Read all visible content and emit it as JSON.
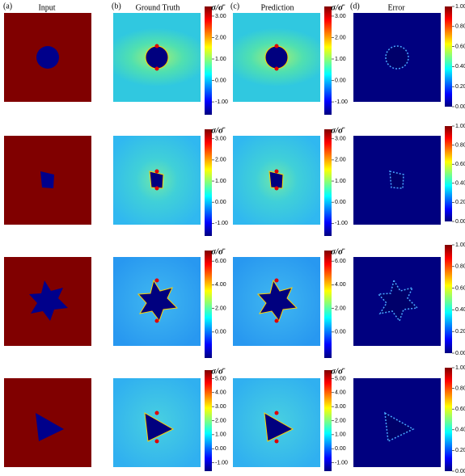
{
  "panels": [
    {
      "label": "(a)",
      "title": "Input"
    },
    {
      "label": "(b)",
      "title": "Ground Truth"
    },
    {
      "label": "(c)",
      "title": "Prediction"
    },
    {
      "label": "(d)",
      "title": "Error"
    }
  ],
  "colorbar_label": "σ/σ̄",
  "rows": [
    {
      "stress_lim": [
        -1.6,
        3.45
      ],
      "stress_ticks": [
        {
          "value": 3,
          "label": "3.00"
        },
        {
          "value": 2,
          "label": "2.00"
        },
        {
          "value": 1,
          "label": "1.00"
        },
        {
          "value": 0,
          "label": "0.00"
        },
        {
          "value": -1,
          "label": "-1.00"
        }
      ],
      "error_lim": [
        0,
        1
      ],
      "error_ticks": [
        {
          "value": 1,
          "label": "1.00"
        },
        {
          "value": 0.8,
          "label": "0.80"
        },
        {
          "value": 0.6,
          "label": "0.60"
        },
        {
          "value": 0.4,
          "label": "0.40"
        },
        {
          "value": 0.2,
          "label": "0.20"
        },
        {
          "value": 0,
          "label": "0.00"
        }
      ]
    },
    {
      "stress_lim": [
        -1.6,
        3.45
      ],
      "stress_ticks": [
        {
          "value": 3,
          "label": "3.00"
        },
        {
          "value": 2,
          "label": "2.00"
        },
        {
          "value": 1,
          "label": "1.00"
        },
        {
          "value": 0,
          "label": "0.00"
        },
        {
          "value": -1,
          "label": "-1.00"
        }
      ],
      "error_lim": [
        0,
        1
      ],
      "error_ticks": [
        {
          "value": 1,
          "label": "1.00"
        },
        {
          "value": 0.8,
          "label": "0.80"
        },
        {
          "value": 0.6,
          "label": "0.60"
        },
        {
          "value": 0.4,
          "label": "0.40"
        },
        {
          "value": 0.2,
          "label": "0.20"
        },
        {
          "value": 0,
          "label": "0.00"
        }
      ]
    },
    {
      "stress_lim": [
        -2.2,
        6.9
      ],
      "stress_ticks": [
        {
          "value": 6,
          "label": "6.00"
        },
        {
          "value": 4,
          "label": "4.00"
        },
        {
          "value": 2,
          "label": "2.00"
        },
        {
          "value": 0,
          "label": "0.00"
        }
      ],
      "error_lim": [
        0,
        1
      ],
      "error_ticks": [
        {
          "value": 1,
          "label": "1.00"
        },
        {
          "value": 0.8,
          "label": "0.80"
        },
        {
          "value": 0.6,
          "label": "0.60"
        },
        {
          "value": 0.4,
          "label": "0.40"
        },
        {
          "value": 0.2,
          "label": "0.20"
        },
        {
          "value": 0,
          "label": "0.00"
        }
      ]
    },
    {
      "stress_lim": [
        -1.6,
        5.6
      ],
      "stress_ticks": [
        {
          "value": 5,
          "label": "5.00"
        },
        {
          "value": 4,
          "label": "4.00"
        },
        {
          "value": 3,
          "label": "3.00"
        },
        {
          "value": 2,
          "label": "2.00"
        },
        {
          "value": 1,
          "label": "1.00"
        },
        {
          "value": 0,
          "label": "0.00"
        },
        {
          "value": -1,
          "label": "-1.00"
        }
      ],
      "error_lim": [
        0,
        1
      ],
      "error_ticks": [
        {
          "value": 1,
          "label": "1.00"
        },
        {
          "value": 0.8,
          "label": "0.80"
        },
        {
          "value": 0.6,
          "label": "0.60"
        },
        {
          "value": 0.4,
          "label": "0.40"
        },
        {
          "value": 0.2,
          "label": "0.20"
        },
        {
          "value": 0,
          "label": "0.00"
        }
      ]
    }
  ]
}
